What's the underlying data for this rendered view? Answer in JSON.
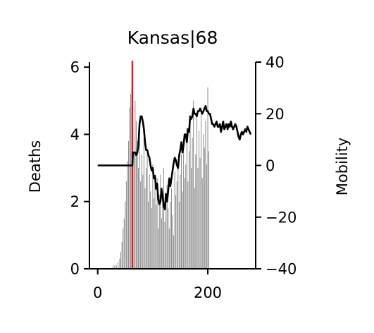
{
  "chart_data": {
    "type": "bar",
    "title": "Kansas|68",
    "xlabel": "",
    "ylabel": "Deaths",
    "y2label": "Mobility",
    "xlim": [
      -15,
      287
    ],
    "ylim": [
      0,
      6.15
    ],
    "y2lim": [
      -40,
      40
    ],
    "x_ticks": [
      0,
      200
    ],
    "y_ticks": [
      0,
      2,
      4,
      6
    ],
    "y2_ticks": [
      40,
      20,
      0,
      -20,
      -40
    ],
    "y2_tick_labels": [
      "40",
      "20",
      "0",
      "−20",
      "−40"
    ],
    "vline_x": 63,
    "colors": {
      "bars": "#808080",
      "line": "#000000",
      "vline": "#e8161b"
    },
    "series": [
      {
        "kind": "bars",
        "axis": "left",
        "x": [
          28,
          31,
          34,
          37,
          40,
          42,
          44,
          46,
          48,
          50,
          52,
          54,
          56,
          58,
          60,
          62,
          64,
          66,
          68,
          70,
          72,
          74,
          76,
          78,
          80,
          82,
          84,
          86,
          88,
          90,
          92,
          94,
          96,
          98,
          100,
          102,
          104,
          106,
          108,
          110,
          112,
          114,
          116,
          118,
          120,
          122,
          124,
          126,
          128,
          130,
          132,
          134,
          136,
          138,
          140,
          142,
          144,
          146,
          148,
          150,
          152,
          154,
          156,
          158,
          160,
          162,
          164,
          166,
          168,
          170,
          172,
          174,
          176,
          178,
          180,
          182,
          184,
          186,
          188,
          190,
          192,
          194,
          196,
          198,
          200,
          202
        ],
        "values": [
          0.1,
          0.1,
          0.1,
          0.2,
          0.3,
          0.5,
          0.8,
          1.2,
          1.5,
          2.0,
          2.6,
          3.2,
          3.8,
          4.8,
          5.2,
          5.4,
          4.2,
          3.5,
          5.0,
          4.4,
          3.8,
          3.0,
          4.2,
          2.6,
          3.4,
          2.8,
          3.9,
          2.4,
          3.0,
          3.4,
          2.0,
          2.8,
          2.3,
          1.8,
          3.1,
          2.1,
          2.5,
          1.9,
          2.7,
          1.2,
          2.2,
          2.8,
          1.5,
          2.0,
          3.0,
          1.4,
          1.9,
          2.5,
          1.8,
          1.2,
          2.0,
          2.4,
          1.6,
          1.0,
          2.9,
          2.2,
          2.6,
          3.2,
          2.0,
          2.8,
          3.4,
          2.3,
          3.8,
          2.7,
          3.1,
          4.2,
          2.6,
          3.5,
          4.4,
          3.0,
          3.9,
          5.0,
          2.4,
          3.4,
          4.6,
          3.0,
          4.1,
          3.3,
          4.8,
          2.7,
          4.0,
          3.6,
          4.4,
          3.1,
          5.4,
          3.5
        ]
      },
      {
        "kind": "line",
        "axis": "right",
        "x": [
          0,
          50,
          60,
          63,
          64,
          66,
          68,
          70,
          72,
          74,
          76,
          78,
          80,
          82,
          84,
          86,
          88,
          90,
          92,
          94,
          96,
          98,
          100,
          102,
          104,
          106,
          108,
          110,
          112,
          114,
          116,
          118,
          120,
          122,
          124,
          126,
          128,
          130,
          132,
          134,
          136,
          138,
          140,
          142,
          144,
          146,
          148,
          150,
          152,
          154,
          156,
          158,
          160,
          162,
          164,
          166,
          168,
          170,
          172,
          174,
          176,
          178,
          180,
          182,
          184,
          186,
          188,
          190,
          192,
          194,
          196,
          198,
          200,
          202,
          204,
          206,
          208,
          210,
          212,
          214,
          216,
          218,
          220,
          222,
          224,
          226,
          228,
          230,
          232,
          234,
          236,
          238,
          240,
          242,
          244,
          246,
          248,
          250,
          252,
          254,
          256,
          258,
          260,
          262,
          264,
          266,
          268,
          270,
          272,
          274,
          276,
          278
        ],
        "values": [
          0,
          0,
          0,
          0,
          5,
          5,
          5,
          4,
          5,
          8,
          16,
          19,
          19,
          17,
          14,
          9,
          6,
          6,
          4,
          3,
          0,
          -2,
          -1,
          -5,
          -4,
          -9,
          -7,
          -13,
          -15,
          -14,
          -9,
          -12,
          -16,
          -17,
          -11,
          -14,
          -10,
          -5,
          -8,
          -5,
          -2,
          1,
          3,
          2,
          0,
          -1,
          4,
          6,
          9,
          5,
          8,
          12,
          12,
          9,
          14,
          13,
          19,
          18,
          19,
          22,
          20,
          20,
          19,
          21,
          21,
          22,
          21,
          20,
          21,
          22,
          23,
          21,
          21,
          20,
          20,
          18,
          16,
          16,
          15,
          16,
          17,
          15,
          15,
          16,
          13,
          15,
          17,
          14,
          15,
          16,
          14,
          16,
          15,
          17,
          15,
          14,
          15,
          16,
          15,
          13,
          11,
          10,
          12,
          13,
          12,
          13,
          14,
          13,
          15,
          14,
          13,
          12
        ]
      }
    ]
  }
}
